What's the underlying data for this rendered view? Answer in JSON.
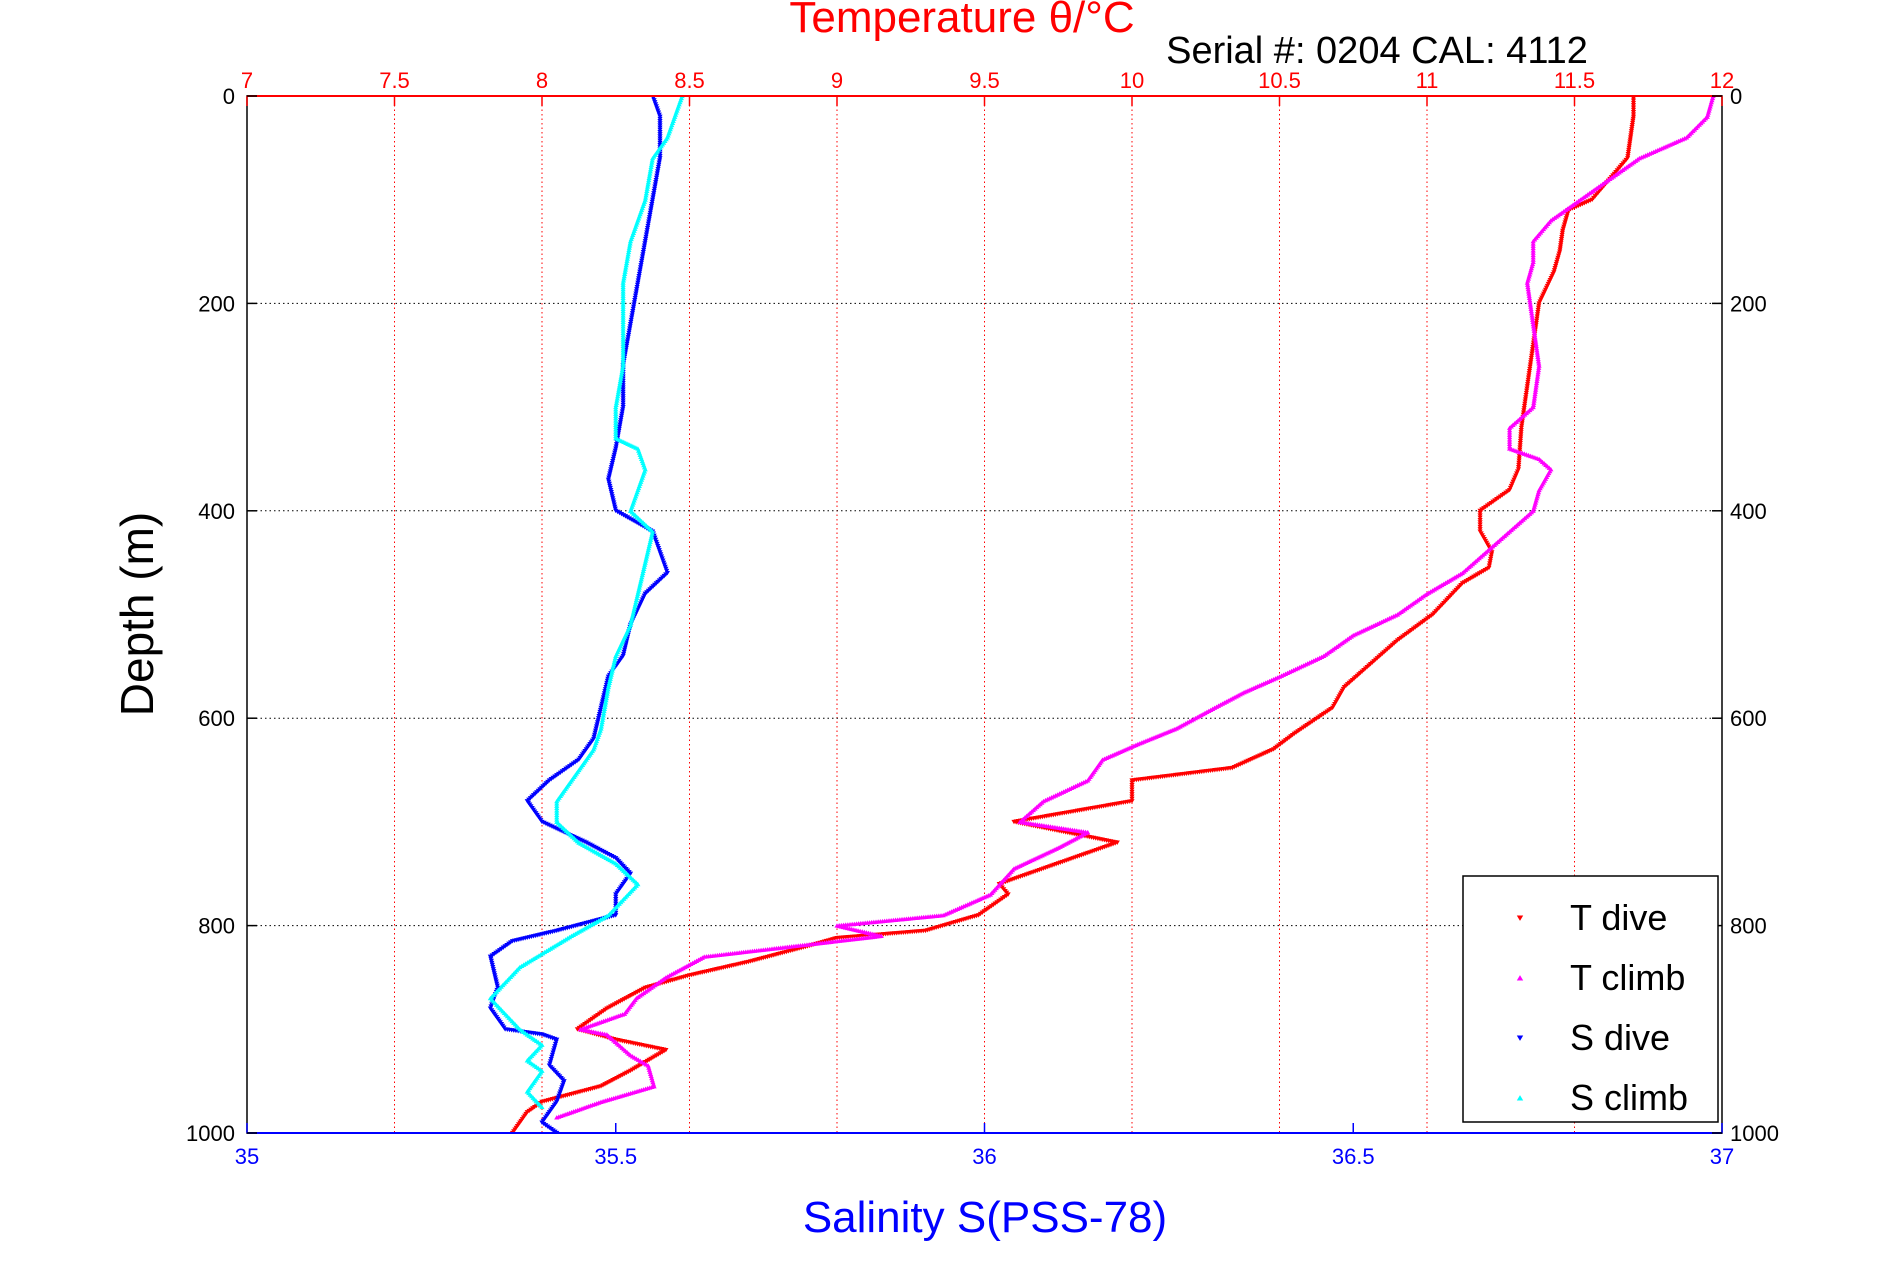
{
  "chart_data": {
    "type": "scatter",
    "title": "Temperature θ/°C",
    "subtitle": "Serial #: 0204  CAL: 4112",
    "ylabel": "Depth (m)",
    "xlabel": "Salinity S(PSS-78)",
    "top_axis_label": "Temperature θ/°C",
    "y_reversed": true,
    "ylim": [
      0,
      1000
    ],
    "xlim_bottom": [
      35,
      37
    ],
    "xlim_top": [
      7,
      12
    ],
    "y_ticks": [
      0,
      200,
      400,
      600,
      800,
      1000
    ],
    "x_ticks_bottom": [
      35,
      35.5,
      36,
      36.5,
      37
    ],
    "x_tick_labels_bottom": [
      "35",
      "35.5",
      "36",
      "36.5",
      "37"
    ],
    "x_ticks_top": [
      7,
      7.5,
      8,
      8.5,
      9,
      9.5,
      10,
      10.5,
      11,
      11.5,
      12
    ],
    "x_tick_labels_top": [
      "7",
      "7.5",
      "8",
      "8.5",
      "9",
      "9.5",
      "10",
      "10.5",
      "11",
      "11.5",
      "12"
    ],
    "grid": true,
    "legend_position": "bottom-right",
    "colors": {
      "top_axis": "#ff0000",
      "bottom_axis": "#0000ff",
      "axis": "#000000"
    },
    "series": [
      {
        "name": "T dive",
        "axis": "top",
        "color": "#ff0000",
        "marker": "triangle-down",
        "points": [
          [
            11.7,
            0
          ],
          [
            11.7,
            20
          ],
          [
            11.69,
            40
          ],
          [
            11.68,
            60
          ],
          [
            11.62,
            80
          ],
          [
            11.56,
            100
          ],
          [
            11.48,
            110
          ],
          [
            11.46,
            130
          ],
          [
            11.45,
            150
          ],
          [
            11.43,
            170
          ],
          [
            11.38,
            200
          ],
          [
            11.36,
            240
          ],
          [
            11.34,
            280
          ],
          [
            11.32,
            320
          ],
          [
            11.31,
            360
          ],
          [
            11.28,
            380
          ],
          [
            11.18,
            400
          ],
          [
            11.18,
            420
          ],
          [
            11.22,
            440
          ],
          [
            11.21,
            455
          ],
          [
            11.12,
            470
          ],
          [
            11.02,
            500
          ],
          [
            10.9,
            525
          ],
          [
            10.78,
            555
          ],
          [
            10.72,
            570
          ],
          [
            10.68,
            590
          ],
          [
            10.55,
            615
          ],
          [
            10.48,
            630
          ],
          [
            10.34,
            648
          ],
          [
            10.0,
            660
          ],
          [
            10.0,
            680
          ],
          [
            9.8,
            690
          ],
          [
            9.6,
            700
          ],
          [
            9.95,
            720
          ],
          [
            9.75,
            740
          ],
          [
            9.55,
            760
          ],
          [
            9.58,
            770
          ],
          [
            9.48,
            790
          ],
          [
            9.3,
            805
          ],
          [
            9.0,
            812
          ],
          [
            8.9,
            820
          ],
          [
            8.7,
            835
          ],
          [
            8.5,
            848
          ],
          [
            8.35,
            860
          ],
          [
            8.22,
            880
          ],
          [
            8.12,
            900
          ],
          [
            8.25,
            910
          ],
          [
            8.42,
            920
          ],
          [
            8.3,
            940
          ],
          [
            8.2,
            955
          ],
          [
            8.0,
            970
          ],
          [
            7.95,
            980
          ],
          [
            7.9,
            1000
          ]
        ]
      },
      {
        "name": "T climb",
        "axis": "top",
        "color": "#ff00ff",
        "marker": "triangle-up",
        "points": [
          [
            11.97,
            0
          ],
          [
            11.95,
            20
          ],
          [
            11.88,
            40
          ],
          [
            11.72,
            60
          ],
          [
            11.62,
            80
          ],
          [
            11.52,
            100
          ],
          [
            11.42,
            120
          ],
          [
            11.36,
            140
          ],
          [
            11.36,
            160
          ],
          [
            11.34,
            180
          ],
          [
            11.36,
            220
          ],
          [
            11.38,
            260
          ],
          [
            11.36,
            300
          ],
          [
            11.28,
            320
          ],
          [
            11.28,
            340
          ],
          [
            11.38,
            350
          ],
          [
            11.42,
            360
          ],
          [
            11.38,
            380
          ],
          [
            11.36,
            400
          ],
          [
            11.28,
            420
          ],
          [
            11.2,
            440
          ],
          [
            11.12,
            460
          ],
          [
            11.0,
            480
          ],
          [
            10.9,
            500
          ],
          [
            10.75,
            520
          ],
          [
            10.65,
            540
          ],
          [
            10.5,
            560
          ],
          [
            10.38,
            575
          ],
          [
            10.28,
            590
          ],
          [
            10.15,
            610
          ],
          [
            10.02,
            625
          ],
          [
            9.9,
            640
          ],
          [
            9.85,
            660
          ],
          [
            9.7,
            680
          ],
          [
            9.62,
            700
          ],
          [
            9.85,
            710
          ],
          [
            9.75,
            725
          ],
          [
            9.6,
            745
          ],
          [
            9.52,
            770
          ],
          [
            9.36,
            790
          ],
          [
            9.0,
            800
          ],
          [
            9.15,
            810
          ],
          [
            8.55,
            830
          ],
          [
            8.42,
            850
          ],
          [
            8.32,
            870
          ],
          [
            8.28,
            885
          ],
          [
            8.13,
            900
          ],
          [
            8.22,
            905
          ],
          [
            8.3,
            925
          ],
          [
            8.36,
            935
          ],
          [
            8.38,
            955
          ],
          [
            8.2,
            970
          ],
          [
            8.05,
            985
          ]
        ]
      },
      {
        "name": "S dive",
        "axis": "bottom",
        "color": "#0000ff",
        "marker": "triangle-down",
        "points": [
          [
            35.55,
            0
          ],
          [
            35.56,
            20
          ],
          [
            35.56,
            60
          ],
          [
            35.55,
            100
          ],
          [
            35.54,
            140
          ],
          [
            35.53,
            180
          ],
          [
            35.52,
            220
          ],
          [
            35.51,
            260
          ],
          [
            35.51,
            300
          ],
          [
            35.5,
            340
          ],
          [
            35.49,
            370
          ],
          [
            35.5,
            400
          ],
          [
            35.55,
            420
          ],
          [
            35.56,
            440
          ],
          [
            35.57,
            460
          ],
          [
            35.54,
            480
          ],
          [
            35.52,
            510
          ],
          [
            35.51,
            540
          ],
          [
            35.49,
            560
          ],
          [
            35.48,
            590
          ],
          [
            35.47,
            620
          ],
          [
            35.45,
            640
          ],
          [
            35.41,
            660
          ],
          [
            35.38,
            680
          ],
          [
            35.4,
            700
          ],
          [
            35.46,
            720
          ],
          [
            35.5,
            735
          ],
          [
            35.52,
            750
          ],
          [
            35.5,
            770
          ],
          [
            35.5,
            790
          ],
          [
            35.42,
            805
          ],
          [
            35.36,
            815
          ],
          [
            35.33,
            830
          ],
          [
            35.34,
            860
          ],
          [
            35.33,
            880
          ],
          [
            35.35,
            900
          ],
          [
            35.4,
            905
          ],
          [
            35.42,
            910
          ],
          [
            35.41,
            935
          ],
          [
            35.43,
            950
          ],
          [
            35.42,
            970
          ],
          [
            35.4,
            990
          ],
          [
            35.42,
            1000
          ]
        ]
      },
      {
        "name": "S climb",
        "axis": "bottom",
        "color": "#00ffff",
        "marker": "triangle-up",
        "points": [
          [
            35.59,
            0
          ],
          [
            35.58,
            20
          ],
          [
            35.57,
            40
          ],
          [
            35.55,
            60
          ],
          [
            35.54,
            100
          ],
          [
            35.52,
            140
          ],
          [
            35.51,
            180
          ],
          [
            35.51,
            220
          ],
          [
            35.51,
            260
          ],
          [
            35.5,
            300
          ],
          [
            35.5,
            330
          ],
          [
            35.53,
            340
          ],
          [
            35.54,
            360
          ],
          [
            35.53,
            380
          ],
          [
            35.52,
            400
          ],
          [
            35.55,
            420
          ],
          [
            35.54,
            450
          ],
          [
            35.53,
            480
          ],
          [
            35.52,
            510
          ],
          [
            35.5,
            540
          ],
          [
            35.49,
            570
          ],
          [
            35.48,
            610
          ],
          [
            35.47,
            630
          ],
          [
            35.45,
            650
          ],
          [
            35.44,
            660
          ],
          [
            35.42,
            680
          ],
          [
            35.42,
            700
          ],
          [
            35.45,
            720
          ],
          [
            35.5,
            740
          ],
          [
            35.53,
            760
          ],
          [
            35.49,
            790
          ],
          [
            35.44,
            810
          ],
          [
            35.37,
            840
          ],
          [
            35.33,
            870
          ],
          [
            35.37,
            900
          ],
          [
            35.4,
            915
          ],
          [
            35.38,
            930
          ],
          [
            35.4,
            940
          ],
          [
            35.38,
            960
          ],
          [
            35.4,
            975
          ]
        ]
      }
    ]
  }
}
